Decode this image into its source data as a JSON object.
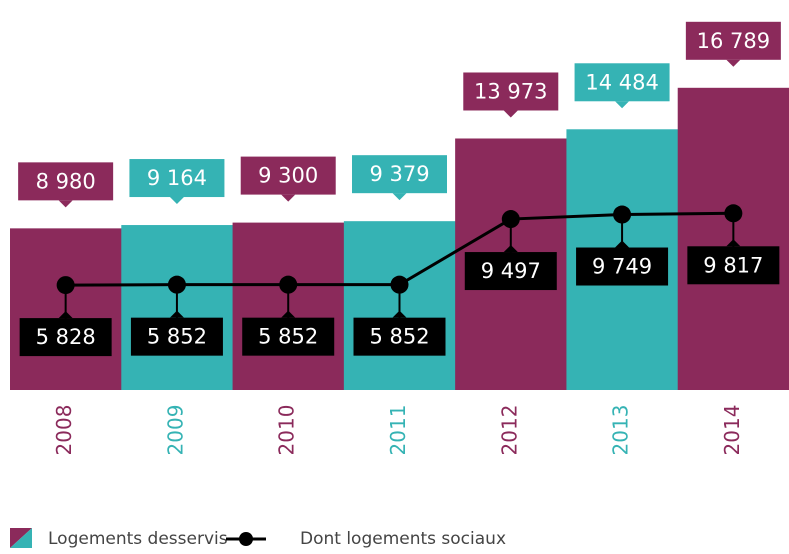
{
  "chart_data": {
    "type": "combo",
    "categories": [
      "2008",
      "2009",
      "2010",
      "2011",
      "2012",
      "2013",
      "2014"
    ],
    "ylim": [
      0,
      17000
    ],
    "series": [
      {
        "name": "Logements desservis",
        "type": "bar",
        "colors": [
          "#8b2a5b",
          "#35b3b4",
          "#8b2a5b",
          "#35b3b4",
          "#8b2a5b",
          "#35b3b4",
          "#8b2a5b"
        ],
        "values": [
          8980,
          9164,
          9300,
          9379,
          13973,
          14484,
          16789
        ],
        "value_labels": [
          "8 980",
          "9 164",
          "9 300",
          "9 379",
          "13 973",
          "14 484",
          "16 789"
        ]
      },
      {
        "name": "Dont logements sociaux",
        "type": "line",
        "color": "#000000",
        "values": [
          5828,
          5852,
          5852,
          5852,
          9497,
          9749,
          9817
        ],
        "value_labels": [
          "5 828",
          "5 852",
          "5 852",
          "5 852",
          "9 497",
          "9 749",
          "9 817"
        ]
      }
    ]
  }
}
